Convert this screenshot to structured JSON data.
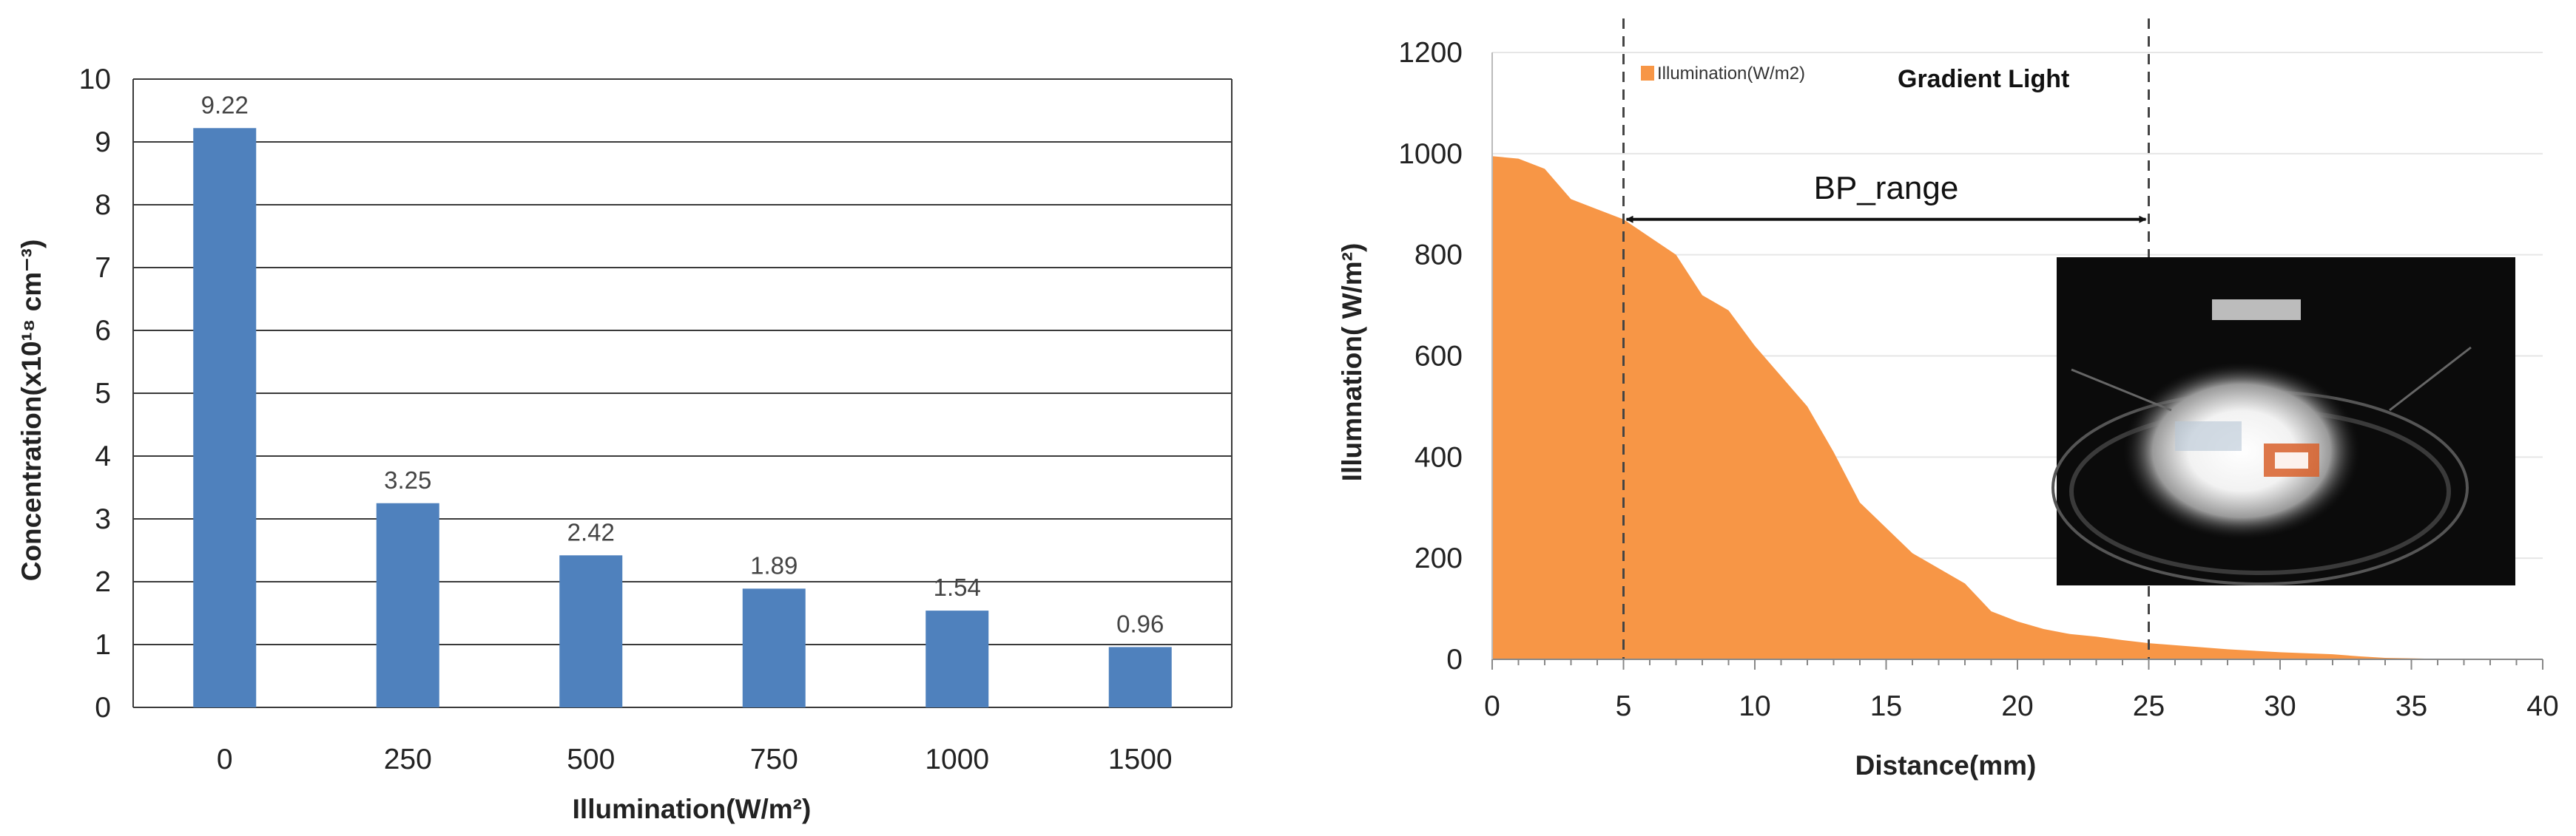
{
  "chart_data": [
    {
      "type": "bar",
      "categories": [
        "0",
        "250",
        "500",
        "750",
        "1000",
        "1500"
      ],
      "values": [
        9.22,
        3.25,
        2.42,
        1.89,
        1.54,
        0.96
      ],
      "data_labels": [
        "9.22",
        "3.25",
        "2.42",
        "1.89",
        "1.54",
        "0.96"
      ],
      "xlabel": "Illumination(W/m²)",
      "ylabel": "Concentration(x10¹⁸ cm⁻³)",
      "ylim": [
        0,
        10
      ],
      "yticks": [
        "0",
        "1",
        "2",
        "3",
        "4",
        "5",
        "6",
        "7",
        "8",
        "9",
        "10"
      ],
      "grid": true,
      "bar_color": "#4f81bd"
    },
    {
      "type": "area",
      "series": [
        {
          "name": "Illumination(W/m2)",
          "x": [
            0,
            1,
            2,
            3,
            4,
            5,
            6,
            7,
            8,
            9,
            10,
            11,
            12,
            13,
            14,
            15,
            16,
            17,
            18,
            19,
            20,
            21,
            22,
            23,
            24,
            25,
            26,
            27,
            28,
            29,
            30,
            31,
            32,
            33,
            34,
            35,
            36,
            37,
            38,
            39,
            40
          ],
          "values": [
            995,
            990,
            970,
            910,
            890,
            870,
            835,
            800,
            720,
            690,
            620,
            560,
            500,
            410,
            310,
            260,
            210,
            180,
            150,
            95,
            75,
            60,
            50,
            45,
            38,
            32,
            28,
            24,
            20,
            17,
            14,
            12,
            10,
            6,
            3,
            2,
            1,
            1,
            0,
            0,
            0
          ],
          "color": "#f79646"
        }
      ],
      "title": "Gradient Light",
      "xlabel": "Distance(mm)",
      "ylabel": "Illumnation( W/m²)",
      "xlim": [
        0,
        40
      ],
      "ylim": [
        0,
        1200
      ],
      "xticks": [
        "0",
        "5",
        "10",
        "15",
        "20",
        "25",
        "30",
        "35",
        "40"
      ],
      "yticks": [
        "0",
        "200",
        "400",
        "600",
        "800",
        "1000",
        "1200"
      ],
      "grid": true,
      "legend": "top-left",
      "annotations": [
        {
          "text": "BP_range",
          "x_start": 5,
          "x_end": 25,
          "y": 870,
          "type": "double-arrow"
        }
      ],
      "vlines": [
        5,
        25
      ],
      "inset_image": "photo-of-gradient-light-setup"
    }
  ]
}
